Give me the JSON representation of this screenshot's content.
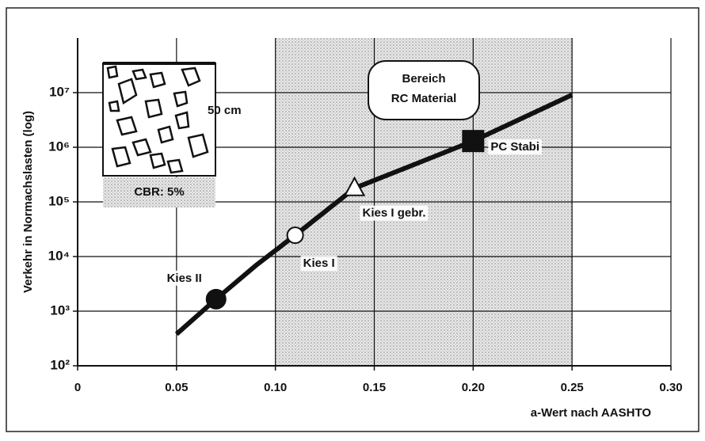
{
  "chart_data": {
    "type": "line",
    "x_label": "a-Wert nach AASHTO",
    "y_label": "Verkehr in Normachslasten (log)",
    "x": [
      0.05,
      0.07,
      0.09,
      0.11,
      0.14,
      0.17,
      0.2,
      0.25
    ],
    "values": [
      380,
      1660,
      6800,
      24500,
      178000,
      480000,
      1300000,
      9100000
    ],
    "color": "#111111",
    "xlim": [
      0,
      0.3
    ],
    "ylim": [
      100,
      100000000
    ],
    "log_y": true,
    "grid": true,
    "xticks": [
      0,
      0.05,
      {
        "value": 0.1,
        "label": "0.10"
      },
      0.15,
      {
        "value": 0.2,
        "label": "0.20"
      },
      0.25,
      {
        "value": 0.3,
        "label": "0.30"
      }
    ],
    "yticks": [
      {
        "value": 100,
        "label": "10²"
      },
      {
        "value": 1000,
        "label": "10³"
      },
      {
        "value": 10000,
        "label": "10⁴"
      },
      {
        "value": 100000,
        "label": "10⁵"
      },
      {
        "value": 1000000,
        "label": "10⁶"
      },
      {
        "value": 10000000,
        "label": "10⁷"
      }
    ],
    "shaded_region": [
      0.1,
      0.25
    ],
    "points": [
      {
        "label": "Kies II",
        "x": 0.07,
        "value": 1660,
        "marker": "filled-circle"
      },
      {
        "label": "Kies I",
        "x": 0.11,
        "value": 24500,
        "marker": "open-circle"
      },
      {
        "label": "Kies I gebr.",
        "x": 0.14,
        "value": 178000,
        "marker": "open-triangle"
      },
      {
        "label": "PC Stabi",
        "x": 0.2,
        "value": 1300000,
        "marker": "filled-square"
      }
    ],
    "region_label": [
      "Bereich",
      "RC Material"
    ],
    "inset": {
      "thickness": "50 cm",
      "subgrade": "CBR: 5%"
    }
  }
}
